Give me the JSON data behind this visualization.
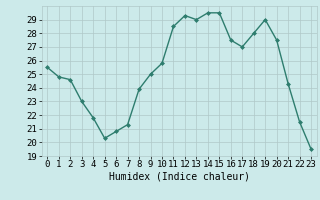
{
  "x": [
    0,
    1,
    2,
    3,
    4,
    5,
    6,
    7,
    8,
    9,
    10,
    11,
    12,
    13,
    14,
    15,
    16,
    17,
    18,
    19,
    20,
    21,
    22,
    23
  ],
  "y": [
    25.5,
    24.8,
    24.6,
    23.0,
    21.8,
    20.3,
    20.8,
    21.3,
    23.9,
    25.0,
    25.8,
    28.5,
    29.3,
    29.0,
    29.5,
    29.5,
    27.5,
    27.0,
    28.0,
    29.0,
    27.5,
    24.3,
    21.5,
    19.5
  ],
  "line_color": "#2e7d6e",
  "marker": "D",
  "marker_size": 2.0,
  "bg_color": "#cceaea",
  "grid_color": "#b0c8c8",
  "xlabel": "Humidex (Indice chaleur)",
  "xlim": [
    -0.5,
    23.5
  ],
  "ylim": [
    19,
    30
  ],
  "yticks": [
    19,
    20,
    21,
    22,
    23,
    24,
    25,
    26,
    27,
    28,
    29
  ],
  "xticks": [
    0,
    1,
    2,
    3,
    4,
    5,
    6,
    7,
    8,
    9,
    10,
    11,
    12,
    13,
    14,
    15,
    16,
    17,
    18,
    19,
    20,
    21,
    22,
    23
  ],
  "xlabel_fontsize": 7,
  "tick_fontsize": 6.5,
  "line_width": 1.0
}
